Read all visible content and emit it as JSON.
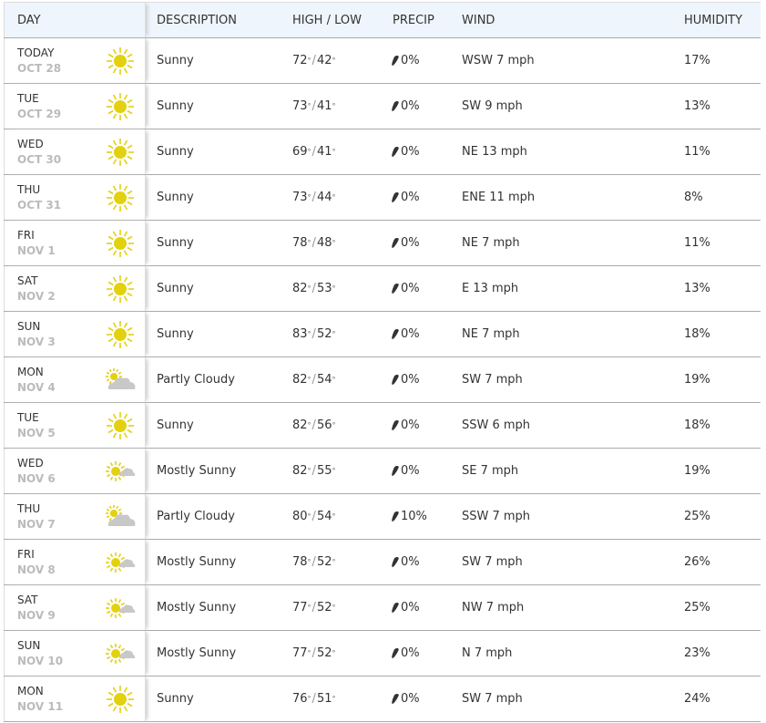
{
  "header": {
    "day": "DAY",
    "description": "DESCRIPTION",
    "high_low": "HIGH / LOW",
    "precip": "PRECIP",
    "wind": "WIND",
    "humidity": "HUMIDITY"
  },
  "colors": {
    "sun": "#e3d10f",
    "cloud": "#c8c8c8",
    "header_bg": "#eef5fc"
  },
  "rows": [
    {
      "day": "TODAY",
      "date": "OCT 28",
      "icon": "sunny",
      "desc": "Sunny",
      "high": "72",
      "low": "42",
      "precip": "0%",
      "wind": "WSW 7 mph",
      "humidity": "17%"
    },
    {
      "day": "TUE",
      "date": "OCT 29",
      "icon": "sunny",
      "desc": "Sunny",
      "high": "73",
      "low": "41",
      "precip": "0%",
      "wind": "SW 9 mph",
      "humidity": "13%"
    },
    {
      "day": "WED",
      "date": "OCT 30",
      "icon": "sunny",
      "desc": "Sunny",
      "high": "69",
      "low": "41",
      "precip": "0%",
      "wind": "NE 13 mph",
      "humidity": "11%"
    },
    {
      "day": "THU",
      "date": "OCT 31",
      "icon": "sunny",
      "desc": "Sunny",
      "high": "73",
      "low": "44",
      "precip": "0%",
      "wind": "ENE 11 mph",
      "humidity": "8%"
    },
    {
      "day": "FRI",
      "date": "NOV 1",
      "icon": "sunny",
      "desc": "Sunny",
      "high": "78",
      "low": "48",
      "precip": "0%",
      "wind": "NE 7 mph",
      "humidity": "11%"
    },
    {
      "day": "SAT",
      "date": "NOV 2",
      "icon": "sunny",
      "desc": "Sunny",
      "high": "82",
      "low": "53",
      "precip": "0%",
      "wind": "E 13 mph",
      "humidity": "13%"
    },
    {
      "day": "SUN",
      "date": "NOV 3",
      "icon": "sunny",
      "desc": "Sunny",
      "high": "83",
      "low": "52",
      "precip": "0%",
      "wind": "NE 7 mph",
      "humidity": "18%"
    },
    {
      "day": "MON",
      "date": "NOV 4",
      "icon": "partly-cloudy",
      "desc": "Partly Cloudy",
      "high": "82",
      "low": "54",
      "precip": "0%",
      "wind": "SW 7 mph",
      "humidity": "19%"
    },
    {
      "day": "TUE",
      "date": "NOV 5",
      "icon": "sunny",
      "desc": "Sunny",
      "high": "82",
      "low": "56",
      "precip": "0%",
      "wind": "SSW 6 mph",
      "humidity": "18%"
    },
    {
      "day": "WED",
      "date": "NOV 6",
      "icon": "mostly-sunny",
      "desc": "Mostly Sunny",
      "high": "82",
      "low": "55",
      "precip": "0%",
      "wind": "SE 7 mph",
      "humidity": "19%"
    },
    {
      "day": "THU",
      "date": "NOV 7",
      "icon": "partly-cloudy",
      "desc": "Partly Cloudy",
      "high": "80",
      "low": "54",
      "precip": "10%",
      "wind": "SSW 7 mph",
      "humidity": "25%"
    },
    {
      "day": "FRI",
      "date": "NOV 8",
      "icon": "mostly-sunny",
      "desc": "Mostly Sunny",
      "high": "78",
      "low": "52",
      "precip": "0%",
      "wind": "SW 7 mph",
      "humidity": "26%"
    },
    {
      "day": "SAT",
      "date": "NOV 9",
      "icon": "mostly-sunny",
      "desc": "Mostly Sunny",
      "high": "77",
      "low": "52",
      "precip": "0%",
      "wind": "NW 7 mph",
      "humidity": "25%"
    },
    {
      "day": "SUN",
      "date": "NOV 10",
      "icon": "mostly-sunny",
      "desc": "Mostly Sunny",
      "high": "77",
      "low": "52",
      "precip": "0%",
      "wind": "N 7 mph",
      "humidity": "23%"
    },
    {
      "day": "MON",
      "date": "NOV 11",
      "icon": "sunny",
      "desc": "Sunny",
      "high": "76",
      "low": "51",
      "precip": "0%",
      "wind": "SW 7 mph",
      "humidity": "24%"
    }
  ]
}
